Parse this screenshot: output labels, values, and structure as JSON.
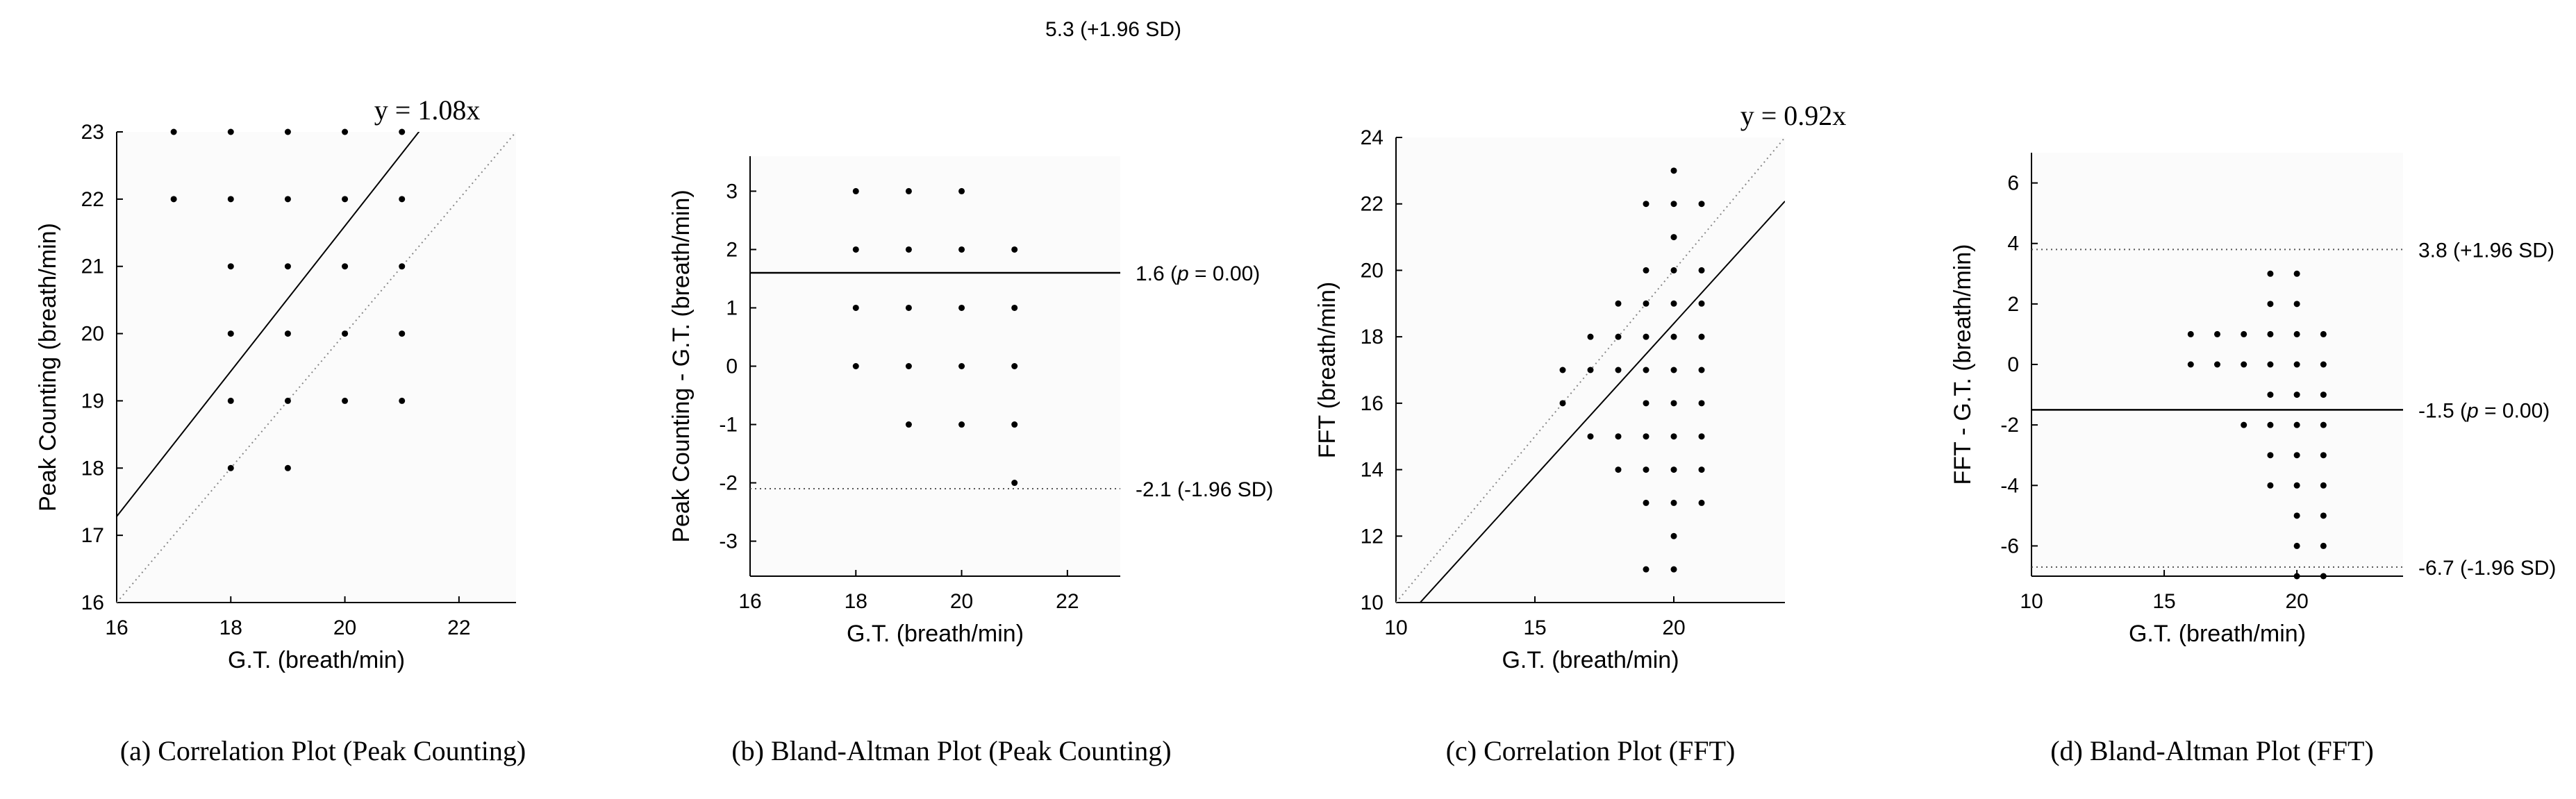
{
  "chart_data": [
    {
      "id": "a",
      "type": "scatter",
      "subtype": "correlation",
      "caption": "(a) Correlation Plot (Peak Counting)",
      "xlabel": "G.T. (breath/min)",
      "ylabel": "Peak Counting (breath/min)",
      "xlim": [
        16,
        23
      ],
      "ylim": [
        16,
        23
      ],
      "xticks": [
        16,
        18,
        20,
        22
      ],
      "yticks": [
        16,
        17,
        18,
        19,
        20,
        21,
        22,
        23
      ],
      "fit_label": "y = 1.08x",
      "fit_slope": 1.08,
      "identity_line": true,
      "points": [
        [
          17,
          23
        ],
        [
          18,
          23
        ],
        [
          19,
          23
        ],
        [
          20,
          23
        ],
        [
          21,
          23
        ],
        [
          17,
          22
        ],
        [
          18,
          22
        ],
        [
          19,
          22
        ],
        [
          20,
          22
        ],
        [
          21,
          22
        ],
        [
          18,
          21
        ],
        [
          19,
          21
        ],
        [
          20,
          21
        ],
        [
          21,
          21
        ],
        [
          18,
          20
        ],
        [
          19,
          20
        ],
        [
          20,
          20
        ],
        [
          21,
          20
        ],
        [
          18,
          19
        ],
        [
          19,
          19
        ],
        [
          20,
          19
        ],
        [
          21,
          19
        ],
        [
          18,
          18
        ],
        [
          19,
          18
        ]
      ]
    },
    {
      "id": "b",
      "type": "scatter",
      "subtype": "bland-altman",
      "caption": "(b) Bland-Altman Plot (Peak Counting)",
      "xlabel": "G.T. (breath/min)",
      "ylabel": "Peak Counting - G.T. (breath/min)",
      "xlim": [
        16,
        23
      ],
      "ylim": [
        -3.6,
        3.6
      ],
      "xticks": [
        16,
        18,
        20,
        22
      ],
      "yticks": [
        -3,
        -2,
        -1,
        0,
        1,
        2,
        3
      ],
      "mean_value": 1.6,
      "mean_label_pre": "1.6 (",
      "mean_label_p": "p",
      "mean_label_post": " = 0.00)",
      "lower_value": -2.1,
      "lower_label": "-2.1 (-1.96 SD)",
      "upper_value": 5.3,
      "upper_label": "5.3 (+1.96 SD)",
      "points": [
        [
          18,
          3
        ],
        [
          19,
          3
        ],
        [
          20,
          3
        ],
        [
          18,
          2
        ],
        [
          19,
          2
        ],
        [
          20,
          2
        ],
        [
          21,
          2
        ],
        [
          18,
          1
        ],
        [
          19,
          1
        ],
        [
          20,
          1
        ],
        [
          21,
          1
        ],
        [
          18,
          0
        ],
        [
          19,
          0
        ],
        [
          20,
          0
        ],
        [
          21,
          0
        ],
        [
          19,
          -1
        ],
        [
          20,
          -1
        ],
        [
          21,
          -1
        ],
        [
          21,
          -2
        ]
      ]
    },
    {
      "id": "c",
      "type": "scatter",
      "subtype": "correlation",
      "caption": "(c) Correlation Plot (FFT)",
      "xlabel": "G.T. (breath/min)",
      "ylabel": "FFT (breath/min)",
      "xlim": [
        10,
        24
      ],
      "ylim": [
        10,
        24
      ],
      "xticks": [
        10,
        15,
        20
      ],
      "yticks": [
        10,
        12,
        14,
        16,
        18,
        20,
        22,
        24
      ],
      "fit_label": "y = 0.92x",
      "fit_slope": 0.92,
      "identity_line": true,
      "points": [
        [
          20,
          23
        ],
        [
          19,
          22
        ],
        [
          20,
          22
        ],
        [
          21,
          22
        ],
        [
          20,
          21
        ],
        [
          19,
          20
        ],
        [
          20,
          20
        ],
        [
          21,
          20
        ],
        [
          18,
          19
        ],
        [
          19,
          19
        ],
        [
          20,
          19
        ],
        [
          21,
          19
        ],
        [
          17,
          18
        ],
        [
          18,
          18
        ],
        [
          19,
          18
        ],
        [
          20,
          18
        ],
        [
          21,
          18
        ],
        [
          16,
          17
        ],
        [
          17,
          17
        ],
        [
          18,
          17
        ],
        [
          19,
          17
        ],
        [
          20,
          17
        ],
        [
          21,
          17
        ],
        [
          16,
          16
        ],
        [
          19,
          16
        ],
        [
          20,
          16
        ],
        [
          21,
          16
        ],
        [
          17,
          15
        ],
        [
          18,
          15
        ],
        [
          19,
          15
        ],
        [
          20,
          15
        ],
        [
          21,
          15
        ],
        [
          18,
          14
        ],
        [
          19,
          14
        ],
        [
          20,
          14
        ],
        [
          21,
          14
        ],
        [
          19,
          13
        ],
        [
          20,
          13
        ],
        [
          21,
          13
        ],
        [
          20,
          12
        ],
        [
          19,
          11
        ],
        [
          20,
          11
        ]
      ]
    },
    {
      "id": "d",
      "type": "scatter",
      "subtype": "bland-altman",
      "caption": "(d) Bland-Altman Plot (FFT)",
      "xlabel": "G.T. (breath/min)",
      "ylabel": "FFT - G.T. (breath/min)",
      "xlim": [
        10,
        24
      ],
      "ylim": [
        -7,
        7
      ],
      "xticks": [
        10,
        15,
        20
      ],
      "yticks": [
        -6,
        -4,
        -2,
        0,
        2,
        4,
        6
      ],
      "mean_value": -1.5,
      "mean_label_pre": "-1.5 (",
      "mean_label_p": "p",
      "mean_label_post": " = 0.00)",
      "upper_value": 3.8,
      "upper_label": "3.8 (+1.96 SD)",
      "lower_value": -6.7,
      "lower_label": "-6.7 (-1.96 SD)",
      "points": [
        [
          19,
          3
        ],
        [
          20,
          3
        ],
        [
          19,
          2
        ],
        [
          20,
          2
        ],
        [
          16,
          1
        ],
        [
          17,
          1
        ],
        [
          18,
          1
        ],
        [
          19,
          1
        ],
        [
          20,
          1
        ],
        [
          21,
          1
        ],
        [
          16,
          0
        ],
        [
          17,
          0
        ],
        [
          18,
          0
        ],
        [
          19,
          0
        ],
        [
          20,
          0
        ],
        [
          21,
          0
        ],
        [
          19,
          -1
        ],
        [
          20,
          -1
        ],
        [
          21,
          -1
        ],
        [
          18,
          -2
        ],
        [
          19,
          -2
        ],
        [
          20,
          -2
        ],
        [
          21,
          -2
        ],
        [
          19,
          -3
        ],
        [
          20,
          -3
        ],
        [
          21,
          -3
        ],
        [
          19,
          -4
        ],
        [
          20,
          -4
        ],
        [
          21,
          -4
        ],
        [
          20,
          -5
        ],
        [
          21,
          -5
        ],
        [
          20,
          -6
        ],
        [
          21,
          -6
        ],
        [
          20,
          -7
        ],
        [
          21,
          -7
        ]
      ]
    }
  ]
}
